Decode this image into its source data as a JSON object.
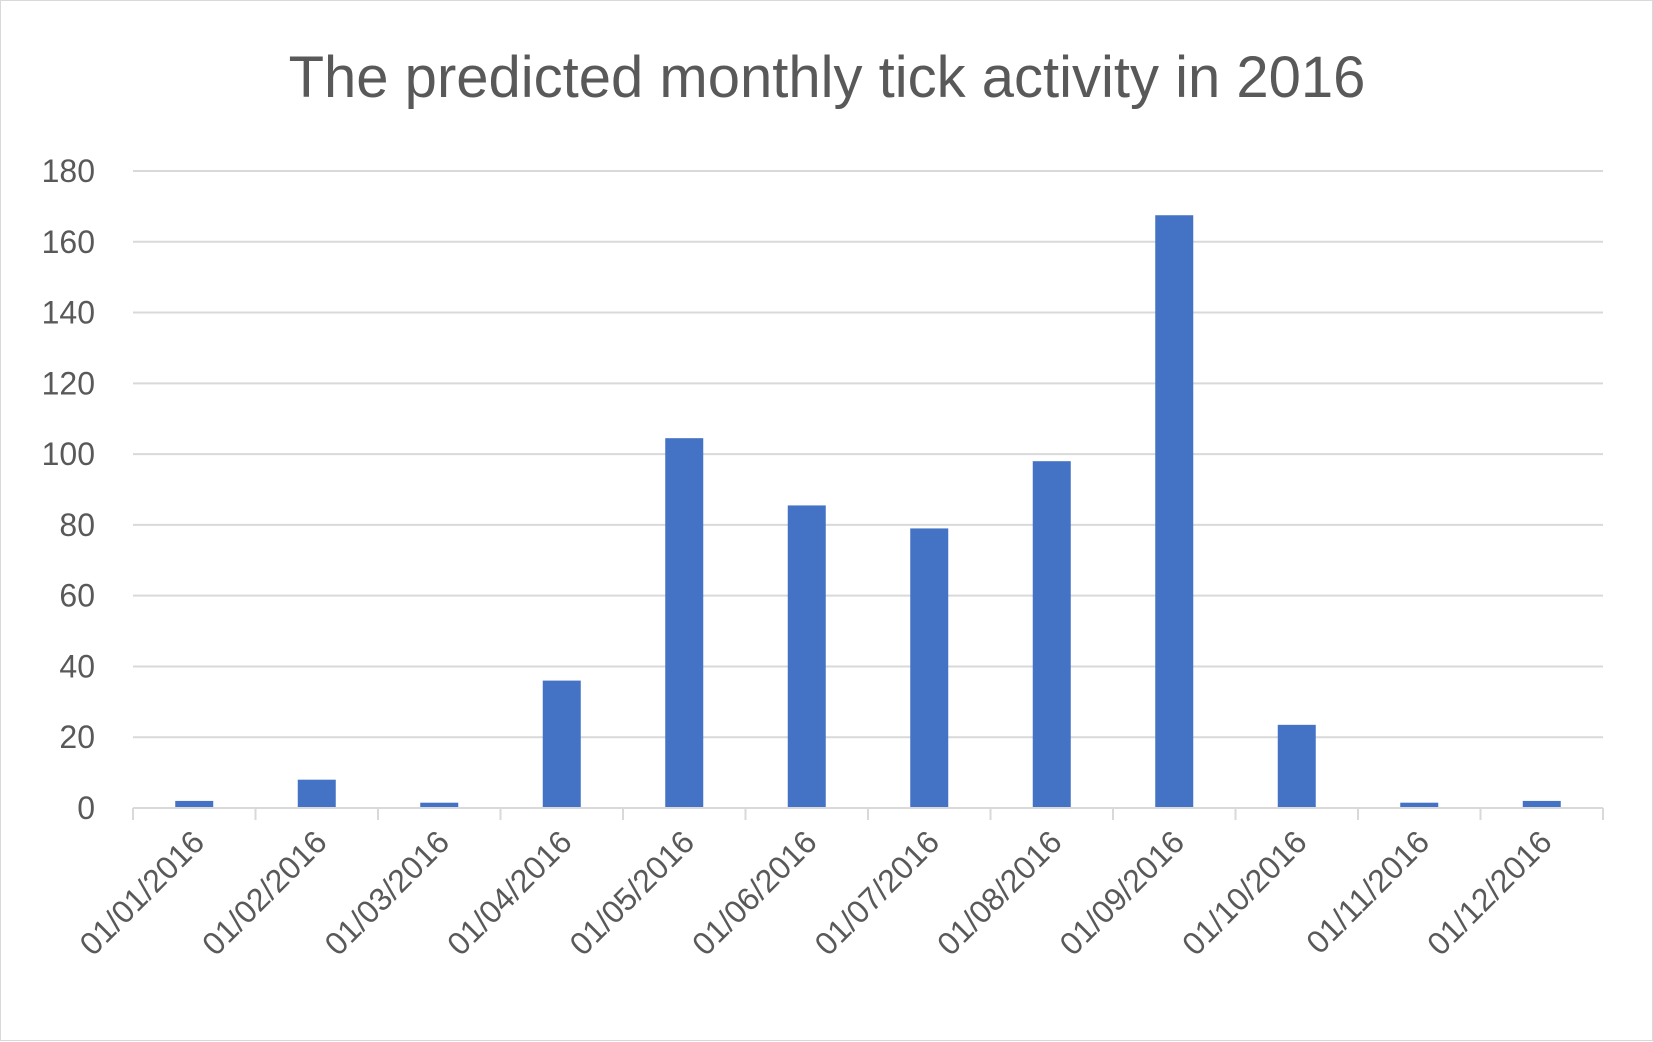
{
  "chart_data": {
    "type": "bar",
    "title": "The predicted monthly tick activity in 2016",
    "xlabel": "",
    "ylabel": "",
    "categories": [
      "01/01/2016",
      "01/02/2016",
      "01/03/2016",
      "01/04/2016",
      "01/05/2016",
      "01/06/2016",
      "01/07/2016",
      "01/08/2016",
      "01/09/2016",
      "01/10/2016",
      "01/11/2016",
      "01/12/2016"
    ],
    "values": [
      2,
      8,
      1.5,
      36,
      104.5,
      85.5,
      79,
      98,
      167.5,
      23.5,
      1.5,
      2
    ],
    "ylim": [
      0,
      180
    ],
    "yticks": [
      0,
      20,
      40,
      60,
      80,
      100,
      120,
      140,
      160,
      180
    ],
    "ytick_labels": [
      "0",
      "20",
      "40",
      "60",
      "80",
      "100",
      "120",
      "140",
      "160",
      "180"
    ],
    "grid": true,
    "legend": "none",
    "bar_color": "#4472c4"
  }
}
